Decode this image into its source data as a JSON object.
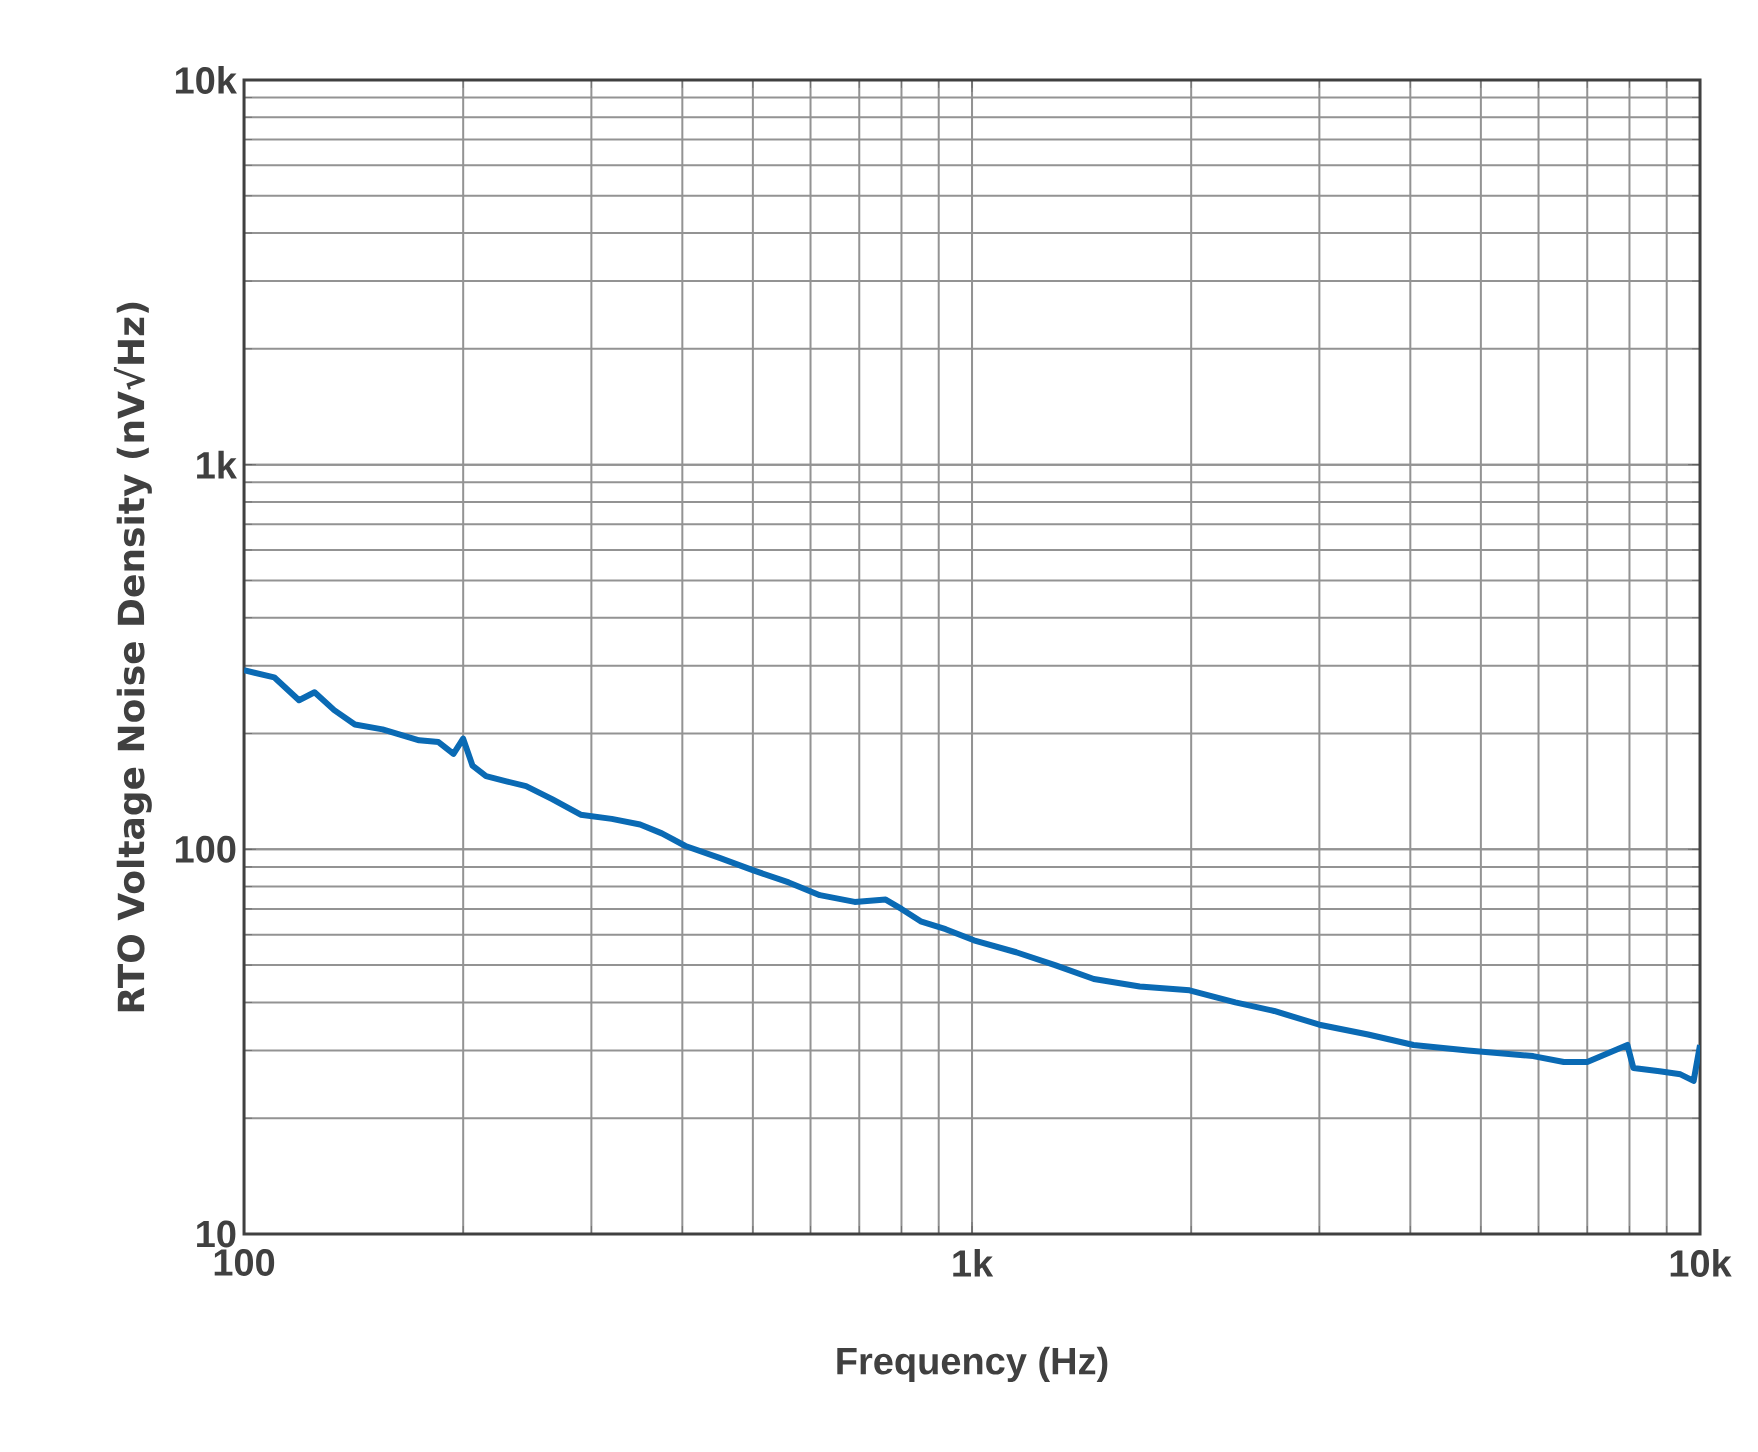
{
  "chart_data": {
    "type": "line",
    "xlabel": "Frequency (Hz)",
    "ylabel": "RTO Voltage Noise Density (nV√Hz)",
    "log": "xy",
    "grid": true,
    "xlim": [
      100,
      10000
    ],
    "ylim": [
      10,
      10000
    ],
    "xticks": [
      100,
      {
        "value": 1000,
        "label": "1k"
      },
      {
        "value": 10000,
        "label": "10k"
      }
    ],
    "yticks": [
      10,
      100,
      {
        "value": 1000,
        "label": "1k"
      },
      {
        "value": 10000,
        "label": "10k"
      }
    ],
    "series": [
      {
        "color": "#0a6ab4",
        "x": [
          100,
          110,
          119,
          125,
          133,
          142,
          155,
          174,
          185,
          194,
          200,
          206,
          215,
          230,
          244,
          265,
          290,
          320,
          350,
          375,
          404,
          450,
          502,
          560,
          618,
          690,
          761,
          800,
          850,
          920,
          1006,
          1150,
          1300,
          1470,
          1700,
          1990,
          2300,
          2600,
          3000,
          3500,
          4040,
          4800,
          5900,
          6500,
          7000,
          7950,
          8100,
          8800,
          9400,
          9800,
          10000
        ],
        "values": [
          292,
          280,
          244,
          256,
          230,
          211,
          205,
          192,
          190,
          177,
          194,
          165,
          155,
          150,
          146,
          135,
          123,
          120,
          116,
          110,
          102,
          95,
          88,
          82,
          76,
          73,
          74,
          70,
          65,
          62,
          58,
          54,
          50,
          46,
          44,
          43,
          40,
          38,
          35,
          33,
          31,
          30,
          29,
          28,
          28,
          31,
          27,
          26.5,
          26,
          25,
          31
        ]
      }
    ]
  }
}
